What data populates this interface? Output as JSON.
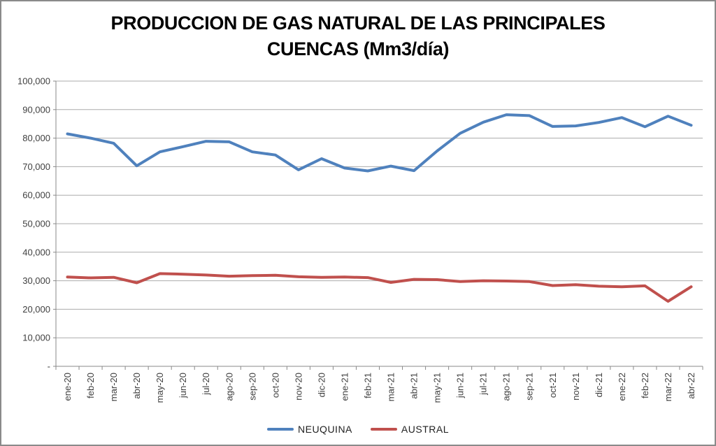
{
  "chart_data": {
    "type": "line",
    "title": "PRODUCCION DE GAS NATURAL DE LAS PRINCIPALES CUENCAS (Mm3/día)",
    "title_lines": [
      "PRODUCCION DE GAS NATURAL DE LAS PRINCIPALES",
      "CUENCAS (Mm3/día)"
    ],
    "categories": [
      "ene-20",
      "feb-20",
      "mar-20",
      "abr-20",
      "may-20",
      "jun-20",
      "jul-20",
      "ago-20",
      "sep-20",
      "oct-20",
      "nov-20",
      "dic-20",
      "ene-21",
      "feb-21",
      "mar-21",
      "abr-21",
      "may-21",
      "jun-21",
      "jul-21",
      "ago-21",
      "sep-21",
      "oct-21",
      "nov-21",
      "dic-21",
      "ene-22",
      "feb-22",
      "mar-22",
      "abr-22"
    ],
    "series": [
      {
        "name": "NEUQUINA",
        "color": "#4F81BD",
        "values": [
          81500,
          80000,
          78200,
          70300,
          75200,
          77000,
          78900,
          78700,
          75200,
          74100,
          68900,
          72800,
          69500,
          68500,
          70200,
          68600,
          75500,
          81700,
          85600,
          88200,
          87900,
          84100,
          84300,
          85500,
          87200,
          84000,
          87700,
          84500
        ]
      },
      {
        "name": "AUSTRAL",
        "color": "#C0504D",
        "values": [
          31300,
          31000,
          31200,
          29300,
          32500,
          32300,
          32000,
          31600,
          31800,
          31900,
          31400,
          31200,
          31300,
          31100,
          29400,
          30500,
          30400,
          29700,
          30000,
          29900,
          29700,
          28300,
          28600,
          28100,
          27900,
          28200,
          22800,
          27900
        ]
      }
    ],
    "ylim": [
      0,
      100000
    ],
    "ytick_step": 10000,
    "ytick_labels": [
      "-",
      "10,000",
      "20,000",
      "30,000",
      "40,000",
      "50,000",
      "60,000",
      "70,000",
      "80,000",
      "90,000",
      "100,000"
    ],
    "grid": "horizontal",
    "legend_position": "bottom",
    "grid_color": "#ABABAB",
    "axis_color": "#898989",
    "xlabel": "",
    "ylabel": ""
  }
}
